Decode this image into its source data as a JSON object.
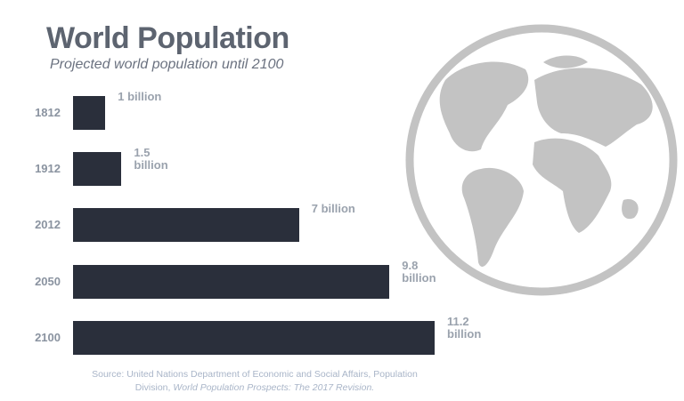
{
  "chart_data": {
    "type": "bar",
    "orientation": "horizontal",
    "title": "World Population",
    "subtitle": "Projected world population until 2100",
    "categories": [
      "1812",
      "1912",
      "2012",
      "2050",
      "2100"
    ],
    "values": [
      1,
      1.5,
      7,
      9.8,
      11.2
    ],
    "value_labels": [
      "1 billion",
      "1.5 billion",
      "7 billion",
      "9.8 billion",
      "11.2 billion"
    ],
    "color": "#2a2f3b",
    "source": {
      "text": "Source: United Nations Department of Economic and Social Affairs, Population Division,",
      "italic": "World Population Prospects: The 2017 Revision."
    }
  }
}
